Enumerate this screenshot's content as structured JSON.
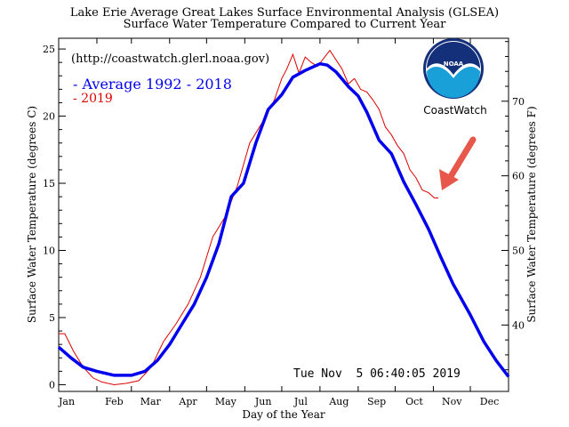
{
  "chart_data": {
    "type": "line",
    "title": "Lake Erie Average Great Lakes Surface Environmental Analysis (GLSEA)",
    "subtitle": "Surface Water Temperature Compared to Current Year",
    "url_note": "(http://coastwatch.glerl.noaa.gov)",
    "xlabel": "Day of the Year",
    "ylabel_left": "Surface Water Temperature (degrees C)",
    "ylabel_right": "Surface Water Temperature (degrees F)",
    "xlim": [
      0,
      365
    ],
    "ylim": [
      -0.5,
      25.8
    ],
    "month_ticks": [
      {
        "label": "Jan",
        "day": 0
      },
      {
        "label": "Feb",
        "day": 31
      },
      {
        "label": "Mar",
        "day": 59
      },
      {
        "label": "Apr",
        "day": 90
      },
      {
        "label": "May",
        "day": 120
      },
      {
        "label": "Jun",
        "day": 151
      },
      {
        "label": "Jul",
        "day": 181
      },
      {
        "label": "Aug",
        "day": 212
      },
      {
        "label": "Sep",
        "day": 243
      },
      {
        "label": "Oct",
        "day": 273
      },
      {
        "label": "Nov",
        "day": 304
      },
      {
        "label": "Dec",
        "day": 334
      }
    ],
    "y_ticks_c": [
      0,
      5,
      10,
      15,
      20,
      25
    ],
    "y_ticks_f": [
      40,
      50,
      60,
      70
    ],
    "timestamp": "Tue Nov  5 06:40:05 2019",
    "logo_text": "NOAA",
    "logo_caption": "CoastWatch",
    "series": [
      {
        "name": "Average 1992 - 2018",
        "legend_label": "- Average 1992 - 2018",
        "color": "#0000ee",
        "x": [
          0,
          10,
          20,
          31,
          45,
          59,
          70,
          80,
          90,
          100,
          110,
          120,
          130,
          140,
          150,
          160,
          170,
          181,
          190,
          200,
          212,
          218,
          225,
          235,
          243,
          250,
          260,
          270,
          280,
          290,
          300,
          310,
          320,
          334,
          345,
          355,
          365
        ],
        "y": [
          2.8,
          2.0,
          1.3,
          1.0,
          0.7,
          0.7,
          1.0,
          1.8,
          3.0,
          4.5,
          6.0,
          8.0,
          10.5,
          14.0,
          15.0,
          18.0,
          20.5,
          21.6,
          22.9,
          23.4,
          23.9,
          23.8,
          23.3,
          22.2,
          21.5,
          20.3,
          18.2,
          17.2,
          15.1,
          13.4,
          11.6,
          9.5,
          7.5,
          5.2,
          3.2,
          1.8,
          0.6
        ]
      },
      {
        "name": "2019",
        "legend_label": "- 2019",
        "color": "#dd0000",
        "x": [
          0,
          5,
          12,
          20,
          28,
          35,
          45,
          55,
          65,
          75,
          85,
          95,
          105,
          115,
          125,
          135,
          145,
          155,
          165,
          175,
          181,
          185,
          190,
          195,
          200,
          205,
          210,
          215,
          220,
          225,
          230,
          235,
          240,
          245,
          250,
          255,
          260,
          265,
          270,
          275,
          280,
          285,
          290,
          295,
          300,
          305,
          308
        ],
        "y": [
          3.8,
          3.8,
          2.5,
          1.3,
          0.5,
          0.2,
          0.0,
          0.1,
          0.3,
          1.3,
          3.2,
          4.5,
          6.0,
          8.0,
          11.0,
          12.5,
          14.8,
          18.0,
          19.5,
          21.2,
          22.8,
          23.5,
          24.6,
          23.2,
          24.4,
          24.0,
          23.7,
          24.3,
          24.9,
          24.2,
          23.5,
          22.4,
          22.8,
          22.0,
          21.8,
          21.2,
          20.5,
          19.2,
          18.6,
          17.8,
          17.2,
          16.0,
          15.4,
          14.5,
          14.3,
          13.9,
          13.9
        ]
      }
    ]
  },
  "colors": {
    "arrow": "#e8584a",
    "logo_blue": "#1aa0d8",
    "logo_dark": "#15307a"
  }
}
